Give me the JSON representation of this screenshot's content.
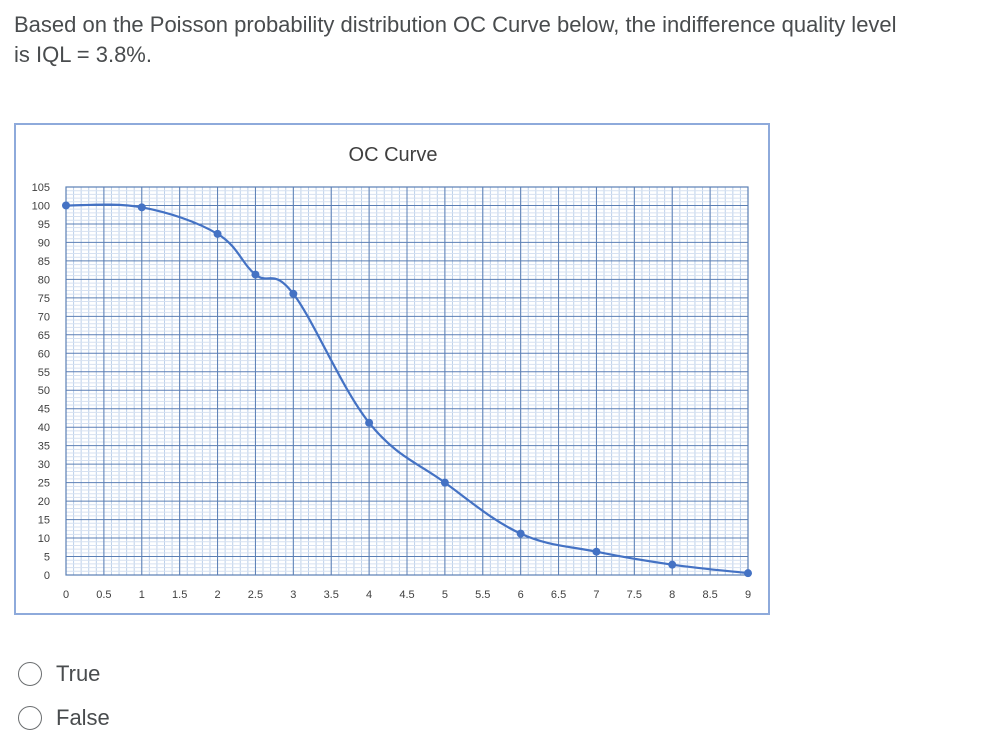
{
  "question": {
    "text": "Based on the Poisson probability distribution OC Curve below, the indifference quality level is IQL = 3.8%."
  },
  "chart_data": {
    "type": "line",
    "title": "OC Curve",
    "xlabel": "",
    "ylabel": "",
    "xlim": [
      0,
      9
    ],
    "ylim": [
      0,
      105
    ],
    "x_ticks": [
      "0",
      "0.5",
      "1",
      "1.5",
      "2",
      "2.5",
      "3",
      "3.5",
      "4",
      "4.5",
      "5",
      "5.5",
      "6",
      "6.5",
      "7",
      "7.5",
      "8",
      "8.5",
      "9"
    ],
    "y_ticks": [
      "0",
      "5",
      "10",
      "15",
      "20",
      "25",
      "30",
      "35",
      "40",
      "45",
      "50",
      "55",
      "60",
      "65",
      "70",
      "75",
      "80",
      "85",
      "90",
      "95",
      "100",
      "105"
    ],
    "grid": true,
    "series": [
      {
        "color": "#4472c4",
        "points": [
          {
            "x": 0,
            "y": 100
          },
          {
            "x": 1,
            "y": 99.5
          },
          {
            "x": 2,
            "y": 92.3
          },
          {
            "x": 2.5,
            "y": 81.3
          },
          {
            "x": 3,
            "y": 76.1
          },
          {
            "x": 4,
            "y": 41.2
          },
          {
            "x": 5,
            "y": 25
          },
          {
            "x": 6,
            "y": 11.2
          },
          {
            "x": 7,
            "y": 6.3
          },
          {
            "x": 8,
            "y": 2.8
          },
          {
            "x": 9,
            "y": 0.5
          }
        ]
      }
    ]
  },
  "options": [
    {
      "label": "True"
    },
    {
      "label": "False"
    }
  ]
}
